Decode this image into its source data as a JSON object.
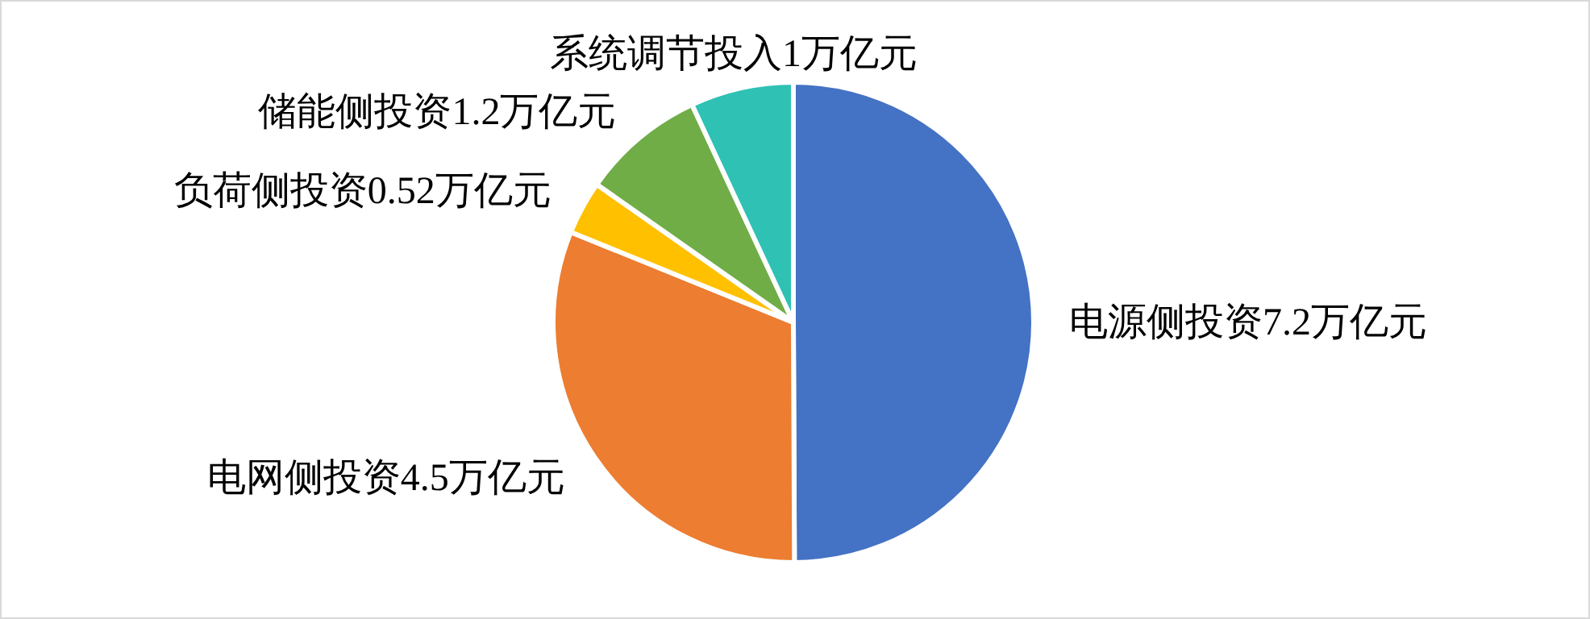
{
  "chart_data": {
    "type": "pie",
    "categories": [
      "电源侧投资",
      "电网侧投资",
      "负荷侧投资",
      "储能侧投资",
      "系统调节投入"
    ],
    "values": [
      7.2,
      4.5,
      0.52,
      1.2,
      1
    ],
    "value_labels": [
      "7.2万亿元",
      "4.5万亿元",
      "0.52万亿元",
      "1.2万亿元",
      "1万亿元"
    ],
    "colors": [
      "#4472c4",
      "#ed7d31",
      "#ffc000",
      "#70ad47",
      "#2fc1b4"
    ],
    "legend": false
  }
}
